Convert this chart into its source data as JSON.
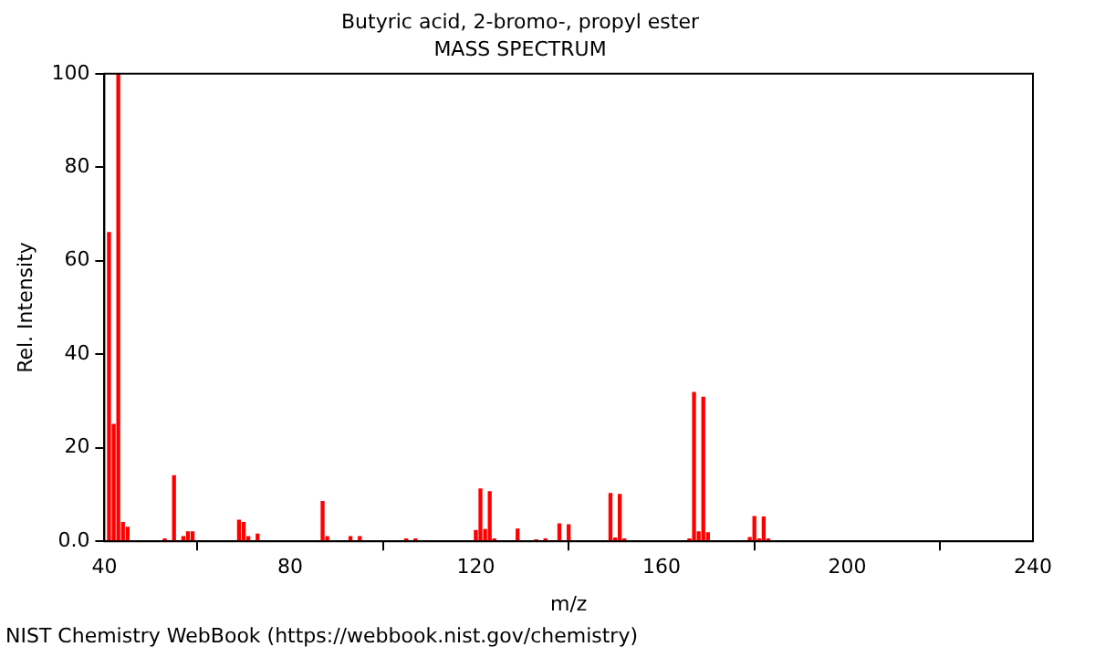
{
  "chart_data": {
    "type": "bar",
    "title": "Butyric acid, 2-bromo-, propyl ester",
    "subtitle": "MASS SPECTRUM",
    "xlabel": "m/z",
    "ylabel": "Rel. Intensity",
    "x": [
      41,
      42,
      43,
      44,
      45,
      53,
      55,
      57,
      58,
      59,
      69,
      70,
      71,
      73,
      87,
      88,
      93,
      95,
      105,
      107,
      120,
      121,
      122,
      123,
      124,
      129,
      133,
      135,
      138,
      140,
      149,
      150,
      151,
      152,
      166,
      167,
      168,
      169,
      170,
      179,
      180,
      181,
      182,
      183
    ],
    "values": [
      66,
      25,
      100,
      4,
      3,
      0.5,
      14,
      1,
      2,
      2,
      4.5,
      4,
      1,
      1.5,
      8.5,
      1,
      1,
      1,
      0.5,
      0.5,
      2.3,
      11.2,
      2.5,
      10.6,
      0.5,
      2.6,
      0.3,
      0.5,
      3.7,
      3.5,
      10.2,
      0.7,
      10,
      0.5,
      0.5,
      31.8,
      2,
      30.8,
      1.8,
      0.8,
      5.3,
      0.5,
      5.2,
      0.5
    ],
    "color": "#ff0000",
    "xlim": [
      40,
      240
    ],
    "xticks": [
      40,
      80,
      120,
      160,
      200,
      240
    ],
    "ylim": [
      0,
      100
    ],
    "yticks": [
      {
        "value": 0,
        "label": "0.0"
      },
      20,
      40,
      60,
      80,
      100
    ],
    "grid": false,
    "legend": false,
    "annotations": [
      "NIST Chemistry WebBook (https://webbook.nist.gov/chemistry)"
    ]
  }
}
